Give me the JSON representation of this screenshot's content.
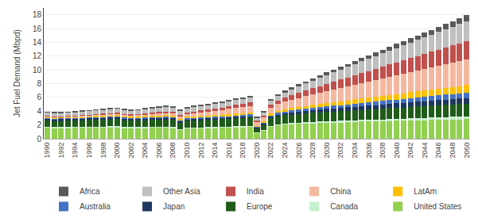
{
  "chart_data": {
    "type": "bar",
    "stacked": true,
    "ylabel": "Jet Fuel Demand (Mbpd)",
    "categories": [
      "1990",
      null,
      "1992",
      null,
      "1994",
      null,
      "1996",
      null,
      "1998",
      null,
      "2000",
      null,
      "2002",
      null,
      "2004",
      null,
      "2006",
      null,
      "2008",
      null,
      "2010",
      null,
      "2012",
      null,
      "2014",
      null,
      "2016",
      null,
      "2018",
      null,
      "2020",
      null,
      "2022",
      null,
      "2024",
      null,
      "2026",
      null,
      "2028",
      null,
      "2030",
      null,
      "2032",
      null,
      "2034",
      null,
      "2036",
      null,
      "2038",
      null,
      "2040",
      null,
      "2042",
      null,
      "2044",
      null,
      "2046",
      null,
      "2048",
      null,
      "2050"
    ],
    "series": [
      {
        "name": "United States",
        "color": "#92d050",
        "values": [
          1.65,
          1.58,
          1.6,
          1.6,
          1.62,
          1.62,
          1.65,
          1.68,
          1.68,
          1.7,
          1.72,
          1.6,
          1.58,
          1.58,
          1.6,
          1.62,
          1.62,
          1.62,
          1.58,
          1.35,
          1.5,
          1.52,
          1.55,
          1.58,
          1.6,
          1.62,
          1.65,
          1.7,
          1.72,
          1.74,
          0.85,
          1.2,
          1.8,
          2.0,
          2.1,
          2.15,
          2.2,
          2.25,
          2.28,
          2.32,
          2.35,
          2.38,
          2.4,
          2.42,
          2.45,
          2.48,
          2.5,
          2.52,
          2.55,
          2.58,
          2.6,
          2.62,
          2.65,
          2.68,
          2.7,
          2.72,
          2.75,
          2.78,
          2.8,
          2.82,
          2.85
        ]
      },
      {
        "name": "Canada",
        "color": "#c6efce",
        "values": [
          0.1,
          0.1,
          0.1,
          0.1,
          0.1,
          0.1,
          0.1,
          0.1,
          0.1,
          0.1,
          0.1,
          0.1,
          0.1,
          0.1,
          0.1,
          0.1,
          0.1,
          0.1,
          0.1,
          0.08,
          0.1,
          0.1,
          0.1,
          0.1,
          0.1,
          0.1,
          0.1,
          0.1,
          0.1,
          0.1,
          0.05,
          0.07,
          0.1,
          0.12,
          0.13,
          0.14,
          0.15,
          0.16,
          0.17,
          0.18,
          0.19,
          0.2,
          0.21,
          0.22,
          0.23,
          0.24,
          0.25,
          0.26,
          0.27,
          0.28,
          0.29,
          0.3,
          0.31,
          0.32,
          0.33,
          0.34,
          0.35,
          0.36,
          0.37,
          0.38,
          0.39
        ]
      },
      {
        "name": "Europe",
        "color": "#1f5c1a",
        "values": [
          0.9,
          0.88,
          0.88,
          0.9,
          0.92,
          0.94,
          0.96,
          0.98,
          1.0,
          1.02,
          1.05,
          1.0,
          0.98,
          0.98,
          1.0,
          1.02,
          1.05,
          1.08,
          1.05,
          0.92,
          1.0,
          1.02,
          1.05,
          1.07,
          1.1,
          1.12,
          1.14,
          1.18,
          1.2,
          1.22,
          0.6,
          0.78,
          1.05,
          1.12,
          1.18,
          1.22,
          1.25,
          1.28,
          1.3,
          1.33,
          1.35,
          1.38,
          1.4,
          1.42,
          1.45,
          1.48,
          1.5,
          1.52,
          1.55,
          1.58,
          1.6,
          1.62,
          1.65,
          1.68,
          1.7,
          1.72,
          1.75,
          1.78,
          1.8,
          1.82,
          1.85
        ]
      },
      {
        "name": "Japan",
        "color": "#1f375e",
        "values": [
          0.3,
          0.3,
          0.3,
          0.3,
          0.3,
          0.3,
          0.3,
          0.3,
          0.3,
          0.3,
          0.3,
          0.28,
          0.28,
          0.28,
          0.28,
          0.28,
          0.28,
          0.28,
          0.28,
          0.24,
          0.26,
          0.26,
          0.26,
          0.26,
          0.26,
          0.26,
          0.26,
          0.26,
          0.26,
          0.26,
          0.14,
          0.18,
          0.28,
          0.3,
          0.32,
          0.34,
          0.36,
          0.38,
          0.4,
          0.42,
          0.44,
          0.46,
          0.48,
          0.5,
          0.52,
          0.54,
          0.56,
          0.58,
          0.6,
          0.62,
          0.64,
          0.66,
          0.68,
          0.7,
          0.72,
          0.74,
          0.76,
          0.78,
          0.8,
          0.82,
          0.84
        ]
      },
      {
        "name": "Australia",
        "color": "#4472c4",
        "values": [
          0.12,
          0.12,
          0.12,
          0.12,
          0.12,
          0.12,
          0.13,
          0.13,
          0.14,
          0.14,
          0.15,
          0.14,
          0.14,
          0.14,
          0.15,
          0.15,
          0.16,
          0.16,
          0.16,
          0.14,
          0.15,
          0.16,
          0.16,
          0.16,
          0.17,
          0.17,
          0.18,
          0.18,
          0.19,
          0.2,
          0.1,
          0.12,
          0.2,
          0.22,
          0.24,
          0.26,
          0.28,
          0.3,
          0.32,
          0.34,
          0.36,
          0.38,
          0.4,
          0.42,
          0.44,
          0.46,
          0.48,
          0.5,
          0.52,
          0.54,
          0.56,
          0.58,
          0.6,
          0.62,
          0.64,
          0.66,
          0.68,
          0.7,
          0.72,
          0.74,
          0.76
        ]
      },
      {
        "name": "LatAm",
        "color": "#ffc000",
        "values": [
          0.12,
          0.12,
          0.12,
          0.13,
          0.13,
          0.14,
          0.14,
          0.15,
          0.15,
          0.16,
          0.16,
          0.16,
          0.16,
          0.16,
          0.17,
          0.17,
          0.17,
          0.18,
          0.18,
          0.16,
          0.18,
          0.18,
          0.18,
          0.19,
          0.2,
          0.2,
          0.21,
          0.22,
          0.22,
          0.23,
          0.12,
          0.15,
          0.22,
          0.26,
          0.3,
          0.34,
          0.37,
          0.4,
          0.43,
          0.46,
          0.5,
          0.53,
          0.56,
          0.59,
          0.62,
          0.65,
          0.68,
          0.71,
          0.74,
          0.77,
          0.8,
          0.83,
          0.86,
          0.89,
          0.92,
          0.95,
          0.98,
          1.01,
          1.04,
          1.07,
          1.1
        ]
      },
      {
        "name": "China",
        "color": "#f4b8a0",
        "values": [
          0.08,
          0.09,
          0.09,
          0.1,
          0.11,
          0.12,
          0.13,
          0.15,
          0.16,
          0.17,
          0.19,
          0.19,
          0.2,
          0.22,
          0.25,
          0.28,
          0.32,
          0.36,
          0.38,
          0.36,
          0.42,
          0.48,
          0.52,
          0.58,
          0.64,
          0.7,
          0.78,
          0.86,
          0.94,
          1.0,
          0.52,
          0.6,
          0.85,
          1.0,
          1.12,
          1.22,
          1.32,
          1.42,
          1.52,
          1.62,
          1.72,
          1.82,
          1.92,
          2.02,
          2.12,
          2.22,
          2.32,
          2.42,
          2.52,
          2.62,
          2.72,
          2.82,
          2.92,
          3.02,
          3.12,
          3.22,
          3.32,
          3.42,
          3.52,
          3.62,
          3.72
        ]
      },
      {
        "name": "India",
        "color": "#c0504d",
        "values": [
          0.05,
          0.05,
          0.05,
          0.06,
          0.06,
          0.07,
          0.08,
          0.09,
          0.1,
          0.11,
          0.12,
          0.12,
          0.12,
          0.13,
          0.14,
          0.15,
          0.17,
          0.19,
          0.21,
          0.2,
          0.22,
          0.25,
          0.27,
          0.29,
          0.32,
          0.35,
          0.38,
          0.42,
          0.46,
          0.5,
          0.24,
          0.28,
          0.42,
          0.5,
          0.58,
          0.66,
          0.74,
          0.82,
          0.9,
          0.98,
          1.06,
          1.14,
          1.22,
          1.3,
          1.38,
          1.46,
          1.54,
          1.62,
          1.7,
          1.78,
          1.86,
          1.94,
          2.02,
          2.1,
          2.18,
          2.26,
          2.34,
          2.42,
          2.5,
          2.58,
          2.66
        ]
      },
      {
        "name": "Other Asia",
        "color": "#bfbfbf",
        "values": [
          0.5,
          0.5,
          0.5,
          0.5,
          0.52,
          0.54,
          0.56,
          0.58,
          0.58,
          0.58,
          0.6,
          0.58,
          0.57,
          0.57,
          0.6,
          0.62,
          0.64,
          0.66,
          0.66,
          0.6,
          0.63,
          0.64,
          0.66,
          0.68,
          0.7,
          0.72,
          0.74,
          0.76,
          0.78,
          0.8,
          0.44,
          0.48,
          0.62,
          0.72,
          0.82,
          0.9,
          0.98,
          1.06,
          1.14,
          1.22,
          1.3,
          1.38,
          1.46,
          1.54,
          1.62,
          1.7,
          1.78,
          1.86,
          1.94,
          2.02,
          2.1,
          2.18,
          2.26,
          2.34,
          2.42,
          2.5,
          2.58,
          2.66,
          2.74,
          2.82,
          2.9
        ]
      },
      {
        "name": "Africa",
        "color": "#595959",
        "values": [
          0.08,
          0.08,
          0.08,
          0.08,
          0.09,
          0.09,
          0.09,
          0.1,
          0.1,
          0.1,
          0.1,
          0.1,
          0.1,
          0.1,
          0.11,
          0.11,
          0.12,
          0.12,
          0.12,
          0.11,
          0.12,
          0.12,
          0.13,
          0.13,
          0.14,
          0.14,
          0.15,
          0.15,
          0.16,
          0.17,
          0.08,
          0.1,
          0.15,
          0.17,
          0.2,
          0.22,
          0.25,
          0.27,
          0.3,
          0.32,
          0.35,
          0.37,
          0.4,
          0.42,
          0.45,
          0.47,
          0.5,
          0.52,
          0.55,
          0.57,
          0.6,
          0.62,
          0.65,
          0.67,
          0.7,
          0.72,
          0.75,
          0.77,
          0.8,
          0.82,
          0.85
        ]
      }
    ],
    "ylim": [
      0,
      19
    ],
    "yticks": [
      0,
      2,
      4,
      6,
      8,
      10,
      12,
      14,
      16,
      18
    ],
    "grid": "y",
    "legend": "bottom"
  }
}
